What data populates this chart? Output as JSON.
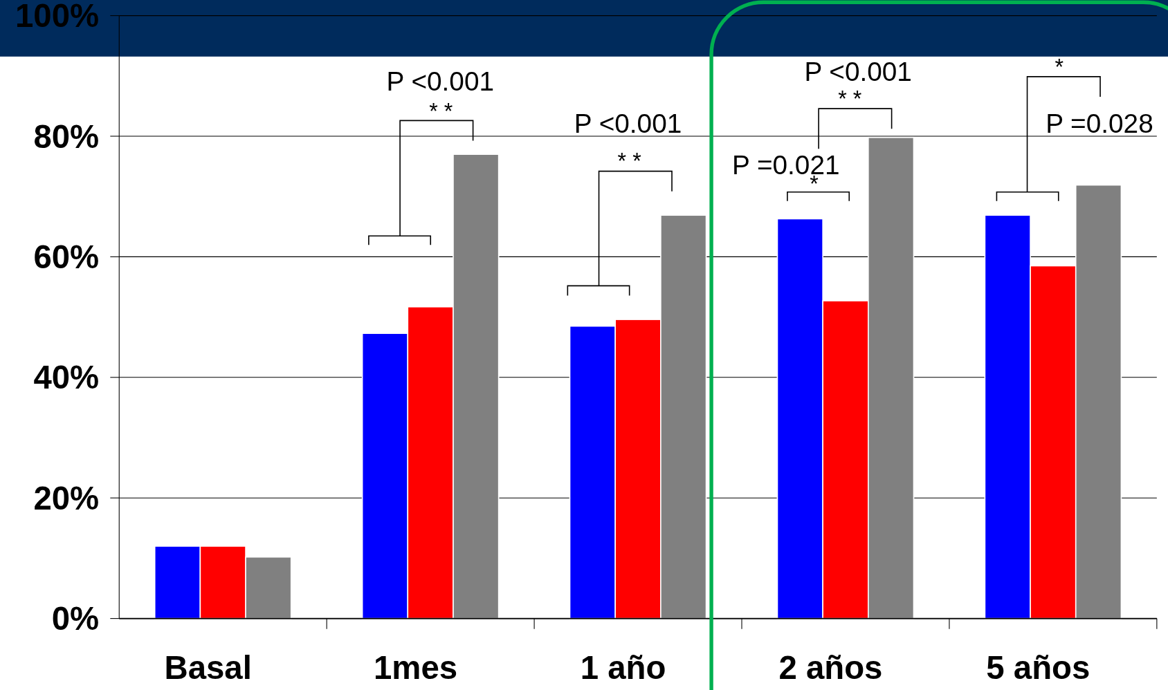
{
  "chart_data": {
    "type": "bar",
    "categories": [
      "Basal",
      "1mes",
      "1 año",
      "2 años",
      "5 años"
    ],
    "series": [
      {
        "color": "#0000ff",
        "values": [
          12,
          47.3,
          48.5,
          66.3,
          66.9
        ]
      },
      {
        "color": "#ff0000",
        "values": [
          12,
          51.7,
          49.6,
          52.7,
          58.5
        ]
      },
      {
        "color": "#808080",
        "values": [
          10.2,
          77,
          66.9,
          79.8,
          71.9
        ]
      }
    ],
    "ylim": [
      0,
      100
    ],
    "yticks": [
      {
        "value": 0,
        "label": "0%"
      },
      {
        "value": 20,
        "label": "20%"
      },
      {
        "value": 40,
        "label": "40%"
      },
      {
        "value": 60,
        "label": "60%"
      },
      {
        "value": 80,
        "label": "80%"
      },
      {
        "value": 100,
        "label": "100%"
      }
    ],
    "grid": "y",
    "annotations": [
      "P <0.001",
      "* *",
      "P <0.001",
      "* *",
      "P =0.021",
      "*",
      "P <0.001",
      "* *",
      "*",
      "P =0.028"
    ]
  }
}
